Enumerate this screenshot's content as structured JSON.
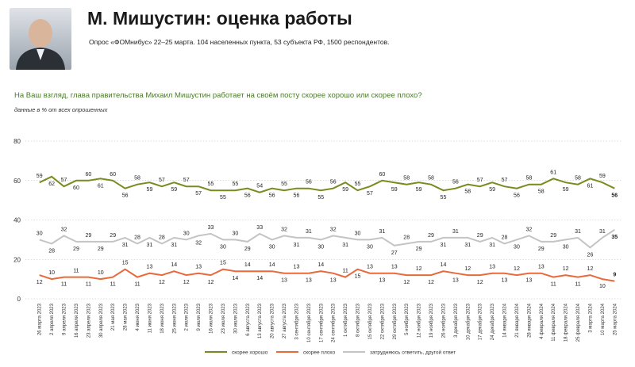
{
  "header": {
    "title": "М. Мишустин: оценка работы",
    "subtitle": "Опрос «ФОМнибус» 22–25 марта. 104 населенных пункта, 53 субъекта РФ, 1500 респондентов."
  },
  "chart_data": {
    "type": "line",
    "title": "На Ваш взгляд, глава правительства Михаил Мишустин работает на своём посту скорее хорошо или скорее плохо?",
    "subtitle": "данные в % от всех опрошенных",
    "categories": [
      "26 марта 2023",
      "2 апреля 2023",
      "9 апреля 2023",
      "16 апреля 2023",
      "23 апреля 2023",
      "30 апреля 2023",
      "21 мая 2023",
      "28 мая 2023",
      "4 июня 2023",
      "11 июня 2023",
      "18 июня 2023",
      "25 июня 2023",
      "2 июля 2023",
      "9 июля 2023",
      "16 июля 2023",
      "23 июля 2023",
      "30 июля 2023",
      "6 августа 2023",
      "13 августа 2023",
      "20 августа 2023",
      "27 августа 2023",
      "3 сентября 2023",
      "10 сентября 2023",
      "17 сентября 2023",
      "24 сентября 2023",
      "1 октября 2023",
      "8 октября 2023",
      "15 октября 2023",
      "22 октября 2023",
      "29 октября 2023",
      "5 ноября 2023",
      "12 ноября 2023",
      "19 ноября 2023",
      "26 ноября 2023",
      "3 декабря 2023",
      "10 декабря 2023",
      "17 декабря 2023",
      "24 декабря 2023",
      "14 января 2024",
      "21 января 2024",
      "28 января 2024",
      "4 февраля 2024",
      "11 февраля 2024",
      "18 февраля 2024",
      "25 февраля 2024",
      "3 марта 2024",
      "10 марта 2024",
      "25 марта 2024"
    ],
    "series": [
      {
        "name": "скорее хорошо",
        "color": "#7b8a1f",
        "values": [
          59,
          62,
          57,
          60,
          60,
          61,
          60,
          56,
          58,
          59,
          57,
          59,
          57,
          57,
          55,
          55,
          55,
          56,
          54,
          56,
          55,
          56,
          56,
          55,
          56,
          59,
          55,
          57,
          60,
          59,
          58,
          59,
          58,
          55,
          56,
          58,
          57,
          59,
          57,
          56,
          58,
          58,
          61,
          59,
          58,
          61,
          59,
          56
        ]
      },
      {
        "name": "скорее плохо",
        "color": "#e8693a",
        "values": [
          12,
          10,
          11,
          11,
          11,
          10,
          11,
          15,
          11,
          13,
          12,
          14,
          12,
          13,
          12,
          15,
          14,
          14,
          14,
          14,
          13,
          13,
          13,
          14,
          13,
          11,
          15,
          13,
          13,
          13,
          12,
          12,
          12,
          14,
          13,
          12,
          12,
          13,
          13,
          12,
          13,
          13,
          11,
          12,
          11,
          12,
          10,
          9
        ]
      },
      {
        "name": "затрудняюсь ответить, другой ответ",
        "color": "#c4c4c4",
        "values": [
          30,
          28,
          32,
          29,
          29,
          29,
          29,
          31,
          28,
          31,
          28,
          31,
          30,
          32,
          33,
          30,
          30,
          29,
          33,
          30,
          32,
          31,
          31,
          30,
          32,
          31,
          30,
          30,
          31,
          27,
          28,
          29,
          29,
          31,
          31,
          31,
          29,
          31,
          28,
          30,
          32,
          29,
          29,
          30,
          31,
          26,
          31,
          35
        ]
      }
    ],
    "ylim": [
      0,
      80
    ],
    "yticks": [
      0,
      20,
      40,
      60,
      80
    ],
    "grid": true,
    "legend": "bottom"
  }
}
